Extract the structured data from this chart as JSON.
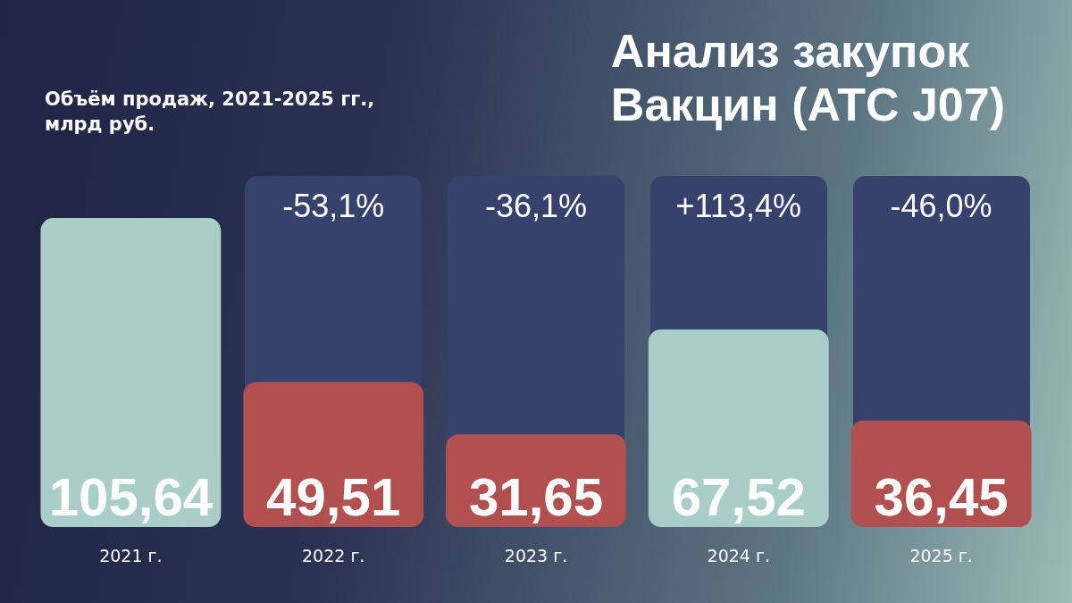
{
  "chart_data": {
    "type": "bar",
    "title": "Анализ закупок\nВакцин (ATC J07)",
    "subtitle": "Объём продаж, 2021-2025 гг.,\nмлрд руб.",
    "categories": [
      "2021 г.",
      "2022 г.",
      "2023 г.",
      "2024 г.",
      "2025 г."
    ],
    "values": [
      105.64,
      49.51,
      31.65,
      67.52,
      36.45
    ],
    "value_labels": [
      "105,64",
      "49,51",
      "31,65",
      "67,52",
      "36,45"
    ],
    "colors": [
      "#a8cec7",
      "#b24f4f",
      "#b24f4f",
      "#a8cec7",
      "#b24f4f"
    ],
    "annotations": [
      "-53,1%",
      "-36,1%",
      "+113,4%",
      "-46,0%"
    ]
  }
}
